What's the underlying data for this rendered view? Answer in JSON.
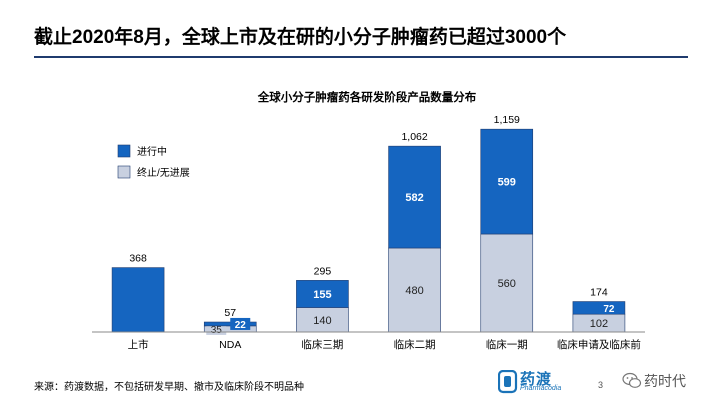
{
  "header": {
    "title": "截止2020年8月，全球上市及在研的小分子肿瘤药已超过3000个"
  },
  "chart_data": {
    "type": "bar",
    "stacked": true,
    "title": "全球小分子肿瘤药各研发阶段产品数量分布",
    "xlabel": "",
    "ylabel": "",
    "ylim": [
      0,
      1200
    ],
    "grid": false,
    "legend_position": "top-left",
    "categories": [
      "上市",
      "NDA",
      "临床三期",
      "临床二期",
      "临床一期",
      "临床申请及临床前"
    ],
    "series": [
      {
        "name": "终止/无进展",
        "color": "#c8d0e0",
        "values": [
          0,
          35,
          140,
          480,
          560,
          102
        ]
      },
      {
        "name": "进行中",
        "color": "#1565c0",
        "values": [
          368,
          22,
          155,
          582,
          599,
          72
        ]
      }
    ],
    "series_labels": [
      [
        "",
        "35",
        "140",
        "480",
        "560",
        "102"
      ],
      [
        "",
        "22",
        "155",
        "582",
        "599",
        "72"
      ]
    ],
    "totals": [
      368,
      57,
      295,
      1062,
      1159,
      174
    ],
    "total_labels": [
      "368",
      "57",
      "295",
      "1,062",
      "1,159",
      "174"
    ]
  },
  "footer": {
    "source_note": "来源：药渡数据，不包括研发早期、撤市及临床阶段不明品种",
    "logo_text": "药渡",
    "logo_sub": "Pharmacodia",
    "page_number": "3",
    "watermark": "药时代"
  },
  "icons": {
    "logo": "pharmacodia-logo-icon",
    "wechat": "wechat-icon"
  }
}
